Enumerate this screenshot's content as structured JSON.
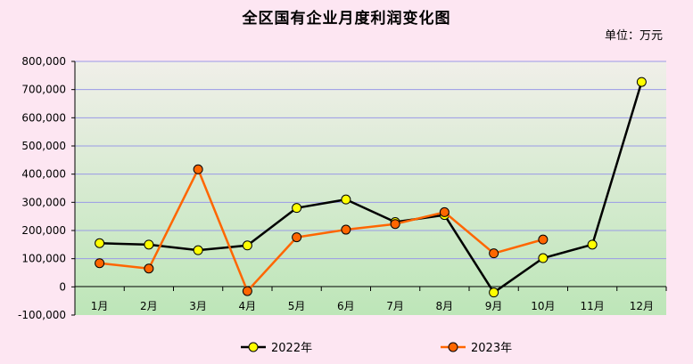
{
  "chart_data": {
    "type": "line",
    "title": "全区国有企业月度利润变化图",
    "unit": "单位：万元",
    "categories": [
      "1月",
      "2月",
      "3月",
      "4月",
      "5月",
      "6月",
      "7月",
      "8月",
      "9月",
      "10月",
      "11月",
      "12月"
    ],
    "y_tick_labels": [
      "800,000",
      "700,000",
      "600,000",
      "500,000",
      "400,000",
      "300,000",
      "200,000",
      "100,000",
      "0",
      "-100,000"
    ],
    "ylim": [
      -100000,
      800000
    ],
    "y_step": 100000,
    "grid": true,
    "legend_position": "bottom",
    "series": [
      {
        "name": "2022年",
        "line_color": "#000000",
        "marker_color": "#ffff00",
        "values": [
          155000,
          150000,
          130000,
          147000,
          280000,
          310000,
          230000,
          255000,
          -20000,
          102000,
          150000,
          727000
        ]
      },
      {
        "name": "2023年",
        "line_color": "#ff6600",
        "marker_color": "#ff6600",
        "values": [
          84000,
          65000,
          417000,
          -15000,
          176000,
          203000,
          223000,
          265000,
          119000,
          168000,
          null,
          null
        ]
      }
    ]
  }
}
